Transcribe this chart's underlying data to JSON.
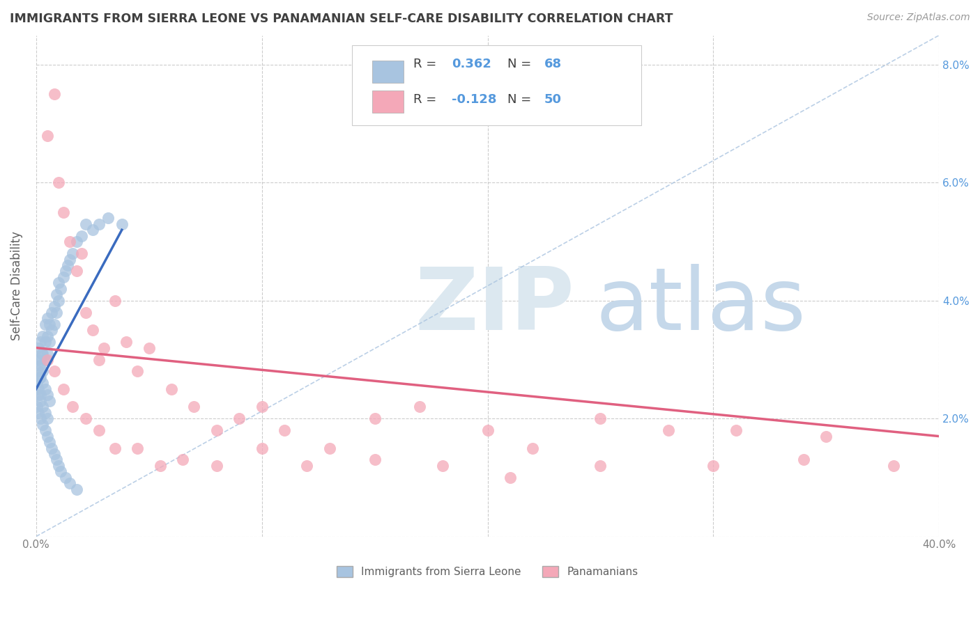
{
  "title": "IMMIGRANTS FROM SIERRA LEONE VS PANAMANIAN SELF-CARE DISABILITY CORRELATION CHART",
  "source_text": "Source: ZipAtlas.com",
  "ylabel": "Self-Care Disability",
  "xlim": [
    0.0,
    0.4
  ],
  "ylim": [
    0.0,
    0.085
  ],
  "R_blue": 0.362,
  "N_blue": 68,
  "R_pink": -0.128,
  "N_pink": 50,
  "blue_color": "#a8c4e0",
  "pink_color": "#f4a8b8",
  "blue_line_color": "#3a6bbf",
  "pink_line_color": "#e06080",
  "legend_label_blue": "Immigrants from Sierra Leone",
  "legend_label_pink": "Panamanians",
  "grid_color": "#cccccc",
  "title_color": "#404040",
  "right_ytick_color": "#5599dd",
  "blue_scatter_x": [
    0.0005,
    0.001,
    0.001,
    0.0015,
    0.002,
    0.002,
    0.002,
    0.0025,
    0.003,
    0.003,
    0.003,
    0.004,
    0.004,
    0.004,
    0.005,
    0.005,
    0.005,
    0.006,
    0.006,
    0.007,
    0.007,
    0.008,
    0.008,
    0.009,
    0.009,
    0.01,
    0.01,
    0.011,
    0.012,
    0.013,
    0.014,
    0.015,
    0.016,
    0.018,
    0.02,
    0.022,
    0.025,
    0.028,
    0.032,
    0.038,
    0.0005,
    0.001,
    0.001,
    0.002,
    0.002,
    0.003,
    0.003,
    0.004,
    0.004,
    0.005,
    0.005,
    0.006,
    0.007,
    0.008,
    0.009,
    0.01,
    0.011,
    0.013,
    0.015,
    0.018,
    0.0005,
    0.001,
    0.0015,
    0.002,
    0.003,
    0.004,
    0.005,
    0.006
  ],
  "blue_scatter_y": [
    0.03,
    0.028,
    0.032,
    0.029,
    0.027,
    0.03,
    0.033,
    0.031,
    0.028,
    0.031,
    0.034,
    0.03,
    0.033,
    0.036,
    0.031,
    0.034,
    0.037,
    0.033,
    0.036,
    0.035,
    0.038,
    0.036,
    0.039,
    0.038,
    0.041,
    0.04,
    0.043,
    0.042,
    0.044,
    0.045,
    0.046,
    0.047,
    0.048,
    0.05,
    0.051,
    0.053,
    0.052,
    0.053,
    0.054,
    0.053,
    0.022,
    0.021,
    0.024,
    0.02,
    0.023,
    0.019,
    0.022,
    0.018,
    0.021,
    0.017,
    0.02,
    0.016,
    0.015,
    0.014,
    0.013,
    0.012,
    0.011,
    0.01,
    0.009,
    0.008,
    0.026,
    0.025,
    0.027,
    0.024,
    0.026,
    0.025,
    0.024,
    0.023
  ],
  "pink_scatter_x": [
    0.005,
    0.008,
    0.01,
    0.012,
    0.015,
    0.018,
    0.02,
    0.022,
    0.025,
    0.028,
    0.03,
    0.035,
    0.04,
    0.045,
    0.05,
    0.06,
    0.07,
    0.08,
    0.09,
    0.1,
    0.11,
    0.13,
    0.15,
    0.17,
    0.2,
    0.22,
    0.25,
    0.28,
    0.31,
    0.35,
    0.005,
    0.008,
    0.012,
    0.016,
    0.022,
    0.028,
    0.035,
    0.045,
    0.055,
    0.065,
    0.08,
    0.1,
    0.12,
    0.15,
    0.18,
    0.21,
    0.25,
    0.3,
    0.34,
    0.38
  ],
  "pink_scatter_y": [
    0.068,
    0.075,
    0.06,
    0.055,
    0.05,
    0.045,
    0.048,
    0.038,
    0.035,
    0.03,
    0.032,
    0.04,
    0.033,
    0.028,
    0.032,
    0.025,
    0.022,
    0.018,
    0.02,
    0.022,
    0.018,
    0.015,
    0.02,
    0.022,
    0.018,
    0.015,
    0.02,
    0.018,
    0.018,
    0.017,
    0.03,
    0.028,
    0.025,
    0.022,
    0.02,
    0.018,
    0.015,
    0.015,
    0.012,
    0.013,
    0.012,
    0.015,
    0.012,
    0.013,
    0.012,
    0.01,
    0.012,
    0.012,
    0.013,
    0.012
  ],
  "blue_trend_x0": 0.0,
  "blue_trend_y0": 0.025,
  "blue_trend_x1": 0.038,
  "blue_trend_y1": 0.052,
  "pink_trend_x0": 0.0,
  "pink_trend_y0": 0.032,
  "pink_trend_x1": 0.4,
  "pink_trend_y1": 0.017
}
